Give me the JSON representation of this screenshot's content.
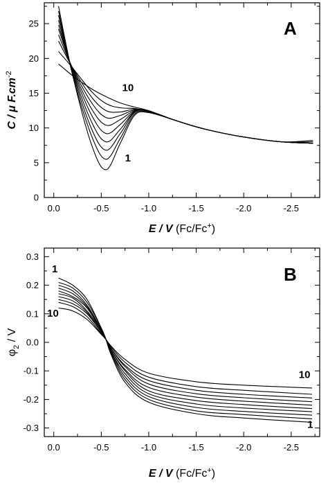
{
  "chart_data": [
    {
      "panel": "A",
      "type": "line",
      "title": "",
      "xlabel": {
        "main": "E / V",
        "unit": "(Fc/Fc",
        "sup": "+",
        "close": ")"
      },
      "ylabel": {
        "main": "C / μ F.cm",
        "sup": "-2"
      },
      "xlim": [
        0.1,
        -2.8
      ],
      "ylim": [
        0,
        28
      ],
      "xticks": [
        0.0,
        -0.5,
        -1.0,
        -1.5,
        -2.0,
        -2.5
      ],
      "xtick_labels": [
        "0.0",
        "-0.5",
        "-1.0",
        "-1.5",
        "-2.0",
        "-2.5"
      ],
      "yticks": [
        0,
        5,
        10,
        15,
        20,
        25
      ],
      "ytick_labels": [
        "0",
        "5",
        "10",
        "15",
        "20",
        "25"
      ],
      "grid": false,
      "annotations": [
        {
          "text": "10",
          "x": -0.72,
          "y": 15.3
        },
        {
          "text": "1",
          "x": -0.75,
          "y": 5.2
        }
      ],
      "series": [
        {
          "x": [
            -0.05,
            -0.2,
            -0.4,
            -0.55,
            -0.7,
            -0.85,
            -1.0,
            -1.3,
            -1.6,
            -2.0,
            -2.4,
            -2.73
          ],
          "y": [
            27.5,
            17.5,
            7.5,
            4.0,
            7.8,
            11.8,
            12.2,
            11.0,
            9.8,
            8.7,
            8.0,
            8.2
          ]
        },
        {
          "x": [
            -0.05,
            -0.2,
            -0.4,
            -0.55,
            -0.7,
            -0.85,
            -1.0,
            -1.3,
            -1.6,
            -2.0,
            -2.4,
            -2.73
          ],
          "y": [
            26.8,
            17.5,
            8.8,
            5.5,
            8.5,
            12.0,
            12.3,
            11.0,
            9.8,
            8.7,
            8.0,
            8.0
          ]
        },
        {
          "x": [
            -0.05,
            -0.2,
            -0.4,
            -0.55,
            -0.7,
            -0.85,
            -1.0,
            -1.3,
            -1.6,
            -2.0,
            -2.4,
            -2.73
          ],
          "y": [
            26.2,
            17.8,
            9.8,
            6.8,
            9.2,
            12.2,
            12.4,
            11.0,
            9.8,
            8.7,
            8.0,
            7.8
          ]
        },
        {
          "x": [
            -0.05,
            -0.2,
            -0.4,
            -0.55,
            -0.7,
            -0.85,
            -1.0,
            -1.3,
            -1.6,
            -2.0,
            -2.4,
            -2.73
          ],
          "y": [
            25.5,
            18.0,
            10.8,
            8.0,
            9.8,
            12.3,
            12.4,
            11.0,
            9.8,
            8.7,
            8.0,
            7.8
          ]
        },
        {
          "x": [
            -0.05,
            -0.2,
            -0.4,
            -0.55,
            -0.7,
            -0.85,
            -1.0,
            -1.3,
            -1.6,
            -2.0,
            -2.4,
            -2.73
          ],
          "y": [
            24.8,
            18.2,
            11.8,
            9.2,
            10.5,
            12.4,
            12.4,
            11.0,
            9.8,
            8.7,
            8.0,
            7.8
          ]
        },
        {
          "x": [
            -0.05,
            -0.2,
            -0.4,
            -0.55,
            -0.7,
            -0.85,
            -1.0,
            -1.3,
            -1.6,
            -2.0,
            -2.4,
            -2.73
          ],
          "y": [
            24.2,
            18.4,
            12.7,
            10.4,
            11.2,
            12.5,
            12.4,
            11.0,
            9.8,
            8.7,
            8.0,
            7.8
          ]
        },
        {
          "x": [
            -0.05,
            -0.2,
            -0.4,
            -0.55,
            -0.7,
            -0.85,
            -1.0,
            -1.3,
            -1.6,
            -2.0,
            -2.4,
            -2.73
          ],
          "y": [
            23.4,
            18.5,
            13.6,
            11.5,
            11.8,
            12.6,
            12.4,
            11.0,
            9.8,
            8.7,
            8.0,
            7.8
          ]
        },
        {
          "x": [
            -0.05,
            -0.2,
            -0.4,
            -0.55,
            -0.7,
            -0.85,
            -1.0,
            -1.3,
            -1.6,
            -2.0,
            -2.4,
            -2.73
          ],
          "y": [
            22.5,
            18.6,
            14.4,
            12.5,
            12.3,
            12.7,
            12.4,
            11.0,
            9.8,
            8.7,
            8.0,
            7.8
          ]
        },
        {
          "x": [
            -0.05,
            -0.2,
            -0.4,
            -0.55,
            -0.7,
            -0.85,
            -1.0,
            -1.3,
            -1.6,
            -2.0,
            -2.4,
            -2.73
          ],
          "y": [
            21.0,
            18.6,
            15.2,
            13.5,
            12.9,
            12.8,
            12.4,
            11.0,
            9.8,
            8.7,
            8.0,
            7.8
          ]
        },
        {
          "x": [
            -0.05,
            -0.2,
            -0.4,
            -0.55,
            -0.7,
            -0.85,
            -1.0,
            -1.3,
            -1.6,
            -2.0,
            -2.4,
            -2.73
          ],
          "y": [
            19.2,
            17.5,
            15.6,
            14.5,
            13.6,
            13.0,
            12.5,
            11.0,
            9.8,
            8.7,
            8.0,
            7.8
          ]
        }
      ]
    },
    {
      "panel": "B",
      "type": "line",
      "title": "",
      "xlabel": {
        "main": "E / V",
        "unit": "(Fc/Fc",
        "sup": "+",
        "close": ")"
      },
      "ylabel": {
        "main": "φ",
        "sub": "2",
        "rest": " / V"
      },
      "xlim": [
        0.1,
        -2.8
      ],
      "ylim": [
        -0.33,
        0.33
      ],
      "xticks": [
        0.0,
        -0.5,
        -1.0,
        -1.5,
        -2.0,
        -2.5
      ],
      "xtick_labels": [
        "0.0",
        "-0.5",
        "-1.0",
        "-1.5",
        "-2.0",
        "-2.5"
      ],
      "yticks": [
        0.3,
        0.2,
        0.1,
        0.0,
        -0.1,
        -0.2,
        -0.3
      ],
      "ytick_labels": [
        "0.3",
        "0.2",
        "0.1",
        "0.0",
        "-0.1",
        "-0.2",
        "-0.3"
      ],
      "grid": false,
      "annotations": [
        {
          "text": "1",
          "x": 0.02,
          "y": 0.245
        },
        {
          "text": "10",
          "x": 0.07,
          "y": 0.09
        },
        {
          "text": "10",
          "x": -2.58,
          "y": -0.125
        },
        {
          "text": "1",
          "x": -2.67,
          "y": -0.3
        }
      ],
      "series": [
        {
          "x": [
            -0.05,
            -0.2,
            -0.35,
            -0.5,
            -0.55,
            -0.6,
            -0.75,
            -1.0,
            -1.5,
            -2.0,
            -2.72
          ],
          "y": [
            0.225,
            0.2,
            0.15,
            0.05,
            0.01,
            -0.04,
            -0.14,
            -0.21,
            -0.25,
            -0.265,
            -0.28
          ]
        },
        {
          "x": [
            -0.05,
            -0.2,
            -0.35,
            -0.5,
            -0.55,
            -0.6,
            -0.75,
            -1.0,
            -1.5,
            -2.0,
            -2.72
          ],
          "y": [
            0.21,
            0.19,
            0.14,
            0.05,
            0.01,
            -0.035,
            -0.13,
            -0.2,
            -0.24,
            -0.253,
            -0.268
          ]
        },
        {
          "x": [
            -0.05,
            -0.2,
            -0.35,
            -0.5,
            -0.55,
            -0.6,
            -0.75,
            -1.0,
            -1.5,
            -2.0,
            -2.72
          ],
          "y": [
            0.2,
            0.18,
            0.13,
            0.045,
            0.01,
            -0.03,
            -0.12,
            -0.19,
            -0.228,
            -0.242,
            -0.255
          ]
        },
        {
          "x": [
            -0.05,
            -0.2,
            -0.35,
            -0.5,
            -0.55,
            -0.6,
            -0.75,
            -1.0,
            -1.5,
            -2.0,
            -2.72
          ],
          "y": [
            0.19,
            0.17,
            0.125,
            0.045,
            0.01,
            -0.03,
            -0.11,
            -0.18,
            -0.216,
            -0.23,
            -0.243
          ]
        },
        {
          "x": [
            -0.05,
            -0.2,
            -0.35,
            -0.5,
            -0.55,
            -0.6,
            -0.75,
            -1.0,
            -1.5,
            -2.0,
            -2.72
          ],
          "y": [
            0.18,
            0.16,
            0.12,
            0.04,
            0.01,
            -0.025,
            -0.1,
            -0.17,
            -0.204,
            -0.218,
            -0.232
          ]
        },
        {
          "x": [
            -0.05,
            -0.2,
            -0.35,
            -0.5,
            -0.55,
            -0.6,
            -0.75,
            -1.0,
            -1.5,
            -2.0,
            -2.72
          ],
          "y": [
            0.17,
            0.155,
            0.11,
            0.04,
            0.01,
            -0.025,
            -0.095,
            -0.158,
            -0.192,
            -0.206,
            -0.22
          ]
        },
        {
          "x": [
            -0.05,
            -0.2,
            -0.35,
            -0.5,
            -0.55,
            -0.6,
            -0.75,
            -1.0,
            -1.5,
            -2.0,
            -2.72
          ],
          "y": [
            0.16,
            0.145,
            0.105,
            0.035,
            0.01,
            -0.02,
            -0.085,
            -0.146,
            -0.18,
            -0.194,
            -0.208
          ]
        },
        {
          "x": [
            -0.05,
            -0.2,
            -0.35,
            -0.5,
            -0.55,
            -0.6,
            -0.75,
            -1.0,
            -1.5,
            -2.0,
            -2.72
          ],
          "y": [
            0.15,
            0.135,
            0.1,
            0.035,
            0.01,
            -0.02,
            -0.08,
            -0.134,
            -0.168,
            -0.182,
            -0.195
          ]
        },
        {
          "x": [
            -0.05,
            -0.2,
            -0.35,
            -0.5,
            -0.55,
            -0.6,
            -0.75,
            -1.0,
            -1.5,
            -2.0,
            -2.72
          ],
          "y": [
            0.14,
            0.125,
            0.09,
            0.03,
            0.01,
            -0.015,
            -0.07,
            -0.122,
            -0.155,
            -0.168,
            -0.182
          ]
        },
        {
          "x": [
            -0.05,
            -0.2,
            -0.35,
            -0.5,
            -0.55,
            -0.6,
            -0.75,
            -1.0,
            -1.5,
            -2.0,
            -2.72
          ],
          "y": [
            0.12,
            0.11,
            0.08,
            0.028,
            0.01,
            -0.012,
            -0.06,
            -0.108,
            -0.138,
            -0.15,
            -0.16
          ]
        }
      ]
    }
  ]
}
